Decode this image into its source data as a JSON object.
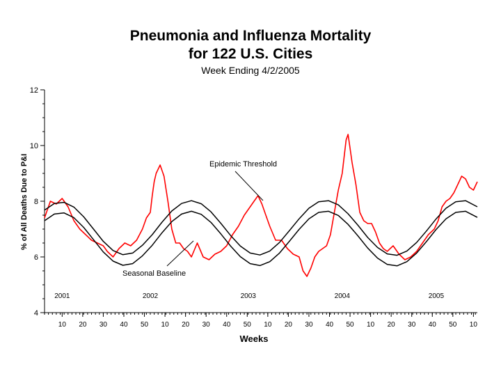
{
  "chart_data": {
    "type": "line",
    "title": "Pneumonia and Influenza Mortality",
    "title_line2": "for 122 U.S. Cities",
    "subtitle": "Week Ending 4/2/2005",
    "xlabel": "Weeks",
    "ylabel": "% of All Deaths Due to P&I",
    "ylim": [
      4,
      12
    ],
    "y_ticks": [
      "4",
      "6",
      "8",
      "10",
      "12"
    ],
    "x_ticks": [
      "10",
      "20",
      "30",
      "40",
      "50",
      "10",
      "20",
      "30",
      "40",
      "50",
      "10",
      "20",
      "30",
      "40",
      "50",
      "10",
      "20",
      "30",
      "40",
      "50",
      "10"
    ],
    "x_range_weeks": [
      1,
      222
    ],
    "season_labels": [
      {
        "label": "2001",
        "week": 10
      },
      {
        "label": "2002",
        "week": 55
      },
      {
        "label": "2003",
        "week": 105
      },
      {
        "label": "2004",
        "week": 153
      },
      {
        "label": "2005",
        "week": 201
      }
    ],
    "annotations": [
      "Epidemic Threshold",
      "Seasonal Baseline"
    ],
    "grid": false,
    "legend": "none",
    "series": [
      {
        "color": "#ff0000",
        "x": [
          1,
          4,
          7,
          10,
          13,
          16,
          19,
          22,
          25,
          28,
          31,
          33,
          36,
          39,
          42,
          45,
          48,
          51,
          53,
          55,
          56,
          57,
          58,
          60,
          62,
          64,
          66,
          68,
          70,
          72,
          74,
          76,
          79,
          82,
          85,
          88,
          91,
          94,
          97,
          100,
          103,
          106,
          108,
          110,
          112,
          114,
          116,
          119,
          122,
          125,
          128,
          131,
          133,
          135,
          137,
          139,
          141,
          143,
          145,
          147,
          149,
          151,
          153,
          155,
          156,
          157,
          158,
          160,
          162,
          164,
          166,
          168,
          170,
          172,
          174,
          176,
          179,
          182,
          185,
          188,
          191,
          194,
          197,
          200,
          202,
          204,
          206,
          208,
          210,
          212,
          214,
          216,
          218,
          220,
          222
        ],
        "values": [
          7.4,
          8.0,
          7.9,
          8.1,
          7.8,
          7.3,
          7.0,
          6.8,
          6.6,
          6.5,
          6.4,
          6.2,
          6.0,
          6.3,
          6.5,
          6.4,
          6.6,
          7.0,
          7.4,
          7.6,
          8.2,
          8.7,
          9.0,
          9.3,
          8.9,
          8.0,
          7.0,
          6.5,
          6.5,
          6.3,
          6.2,
          6.0,
          6.5,
          6.0,
          5.9,
          6.1,
          6.2,
          6.4,
          6.8,
          7.1,
          7.5,
          7.8,
          8.0,
          8.2,
          7.9,
          7.5,
          7.1,
          6.6,
          6.6,
          6.3,
          6.1,
          6.0,
          5.5,
          5.3,
          5.6,
          6.0,
          6.2,
          6.3,
          6.4,
          6.8,
          7.6,
          8.4,
          9.0,
          10.2,
          10.4,
          9.9,
          9.4,
          8.6,
          7.6,
          7.3,
          7.2,
          7.2,
          6.9,
          6.5,
          6.3,
          6.2,
          6.4,
          6.1,
          5.9,
          6.0,
          6.2,
          6.5,
          6.8,
          7.0,
          7.3,
          7.8,
          8.0,
          8.1,
          8.3,
          8.6,
          8.9,
          8.8,
          8.5,
          8.4,
          8.7
        ]
      },
      {
        "name": "Epidemic Threshold",
        "color": "#000000",
        "x": [
          1,
          6,
          11,
          16,
          21,
          26,
          31,
          36,
          41,
          46,
          51,
          56,
          61,
          66,
          71,
          76,
          81,
          86,
          91,
          96,
          101,
          106,
          111,
          116,
          121,
          126,
          131,
          136,
          141,
          146,
          151,
          156,
          161,
          166,
          171,
          176,
          181,
          186,
          191,
          196,
          201,
          206,
          211,
          216,
          222
        ],
        "values": [
          7.68,
          7.92,
          7.96,
          7.79,
          7.44,
          7.0,
          6.56,
          6.23,
          6.08,
          6.14,
          6.42,
          6.8,
          7.25,
          7.65,
          7.92,
          8.02,
          7.91,
          7.62,
          7.21,
          6.77,
          6.39,
          6.14,
          6.07,
          6.21,
          6.52,
          6.94,
          7.37,
          7.75,
          7.98,
          8.02,
          7.87,
          7.55,
          7.14,
          6.7,
          6.34,
          6.11,
          6.06,
          6.21,
          6.52,
          6.93,
          7.37,
          7.75,
          7.98,
          8.02,
          7.8
        ]
      },
      {
        "name": "Seasonal Baseline",
        "color": "#000000",
        "x": [
          1,
          6,
          11,
          16,
          21,
          26,
          31,
          36,
          41,
          46,
          51,
          56,
          61,
          66,
          71,
          76,
          81,
          86,
          91,
          96,
          101,
          106,
          111,
          116,
          121,
          126,
          131,
          136,
          141,
          146,
          151,
          156,
          161,
          166,
          171,
          176,
          181,
          186,
          191,
          196,
          201,
          206,
          211,
          216,
          222
        ],
        "values": [
          7.3,
          7.54,
          7.58,
          7.41,
          7.06,
          6.62,
          6.18,
          5.85,
          5.7,
          5.76,
          6.04,
          6.42,
          6.87,
          7.27,
          7.54,
          7.64,
          7.53,
          7.24,
          6.83,
          6.39,
          6.01,
          5.76,
          5.69,
          5.83,
          6.14,
          6.56,
          6.99,
          7.37,
          7.6,
          7.64,
          7.49,
          7.17,
          6.76,
          6.32,
          5.96,
          5.73,
          5.68,
          5.83,
          6.14,
          6.55,
          6.99,
          7.37,
          7.6,
          7.64,
          7.42
        ]
      }
    ]
  }
}
